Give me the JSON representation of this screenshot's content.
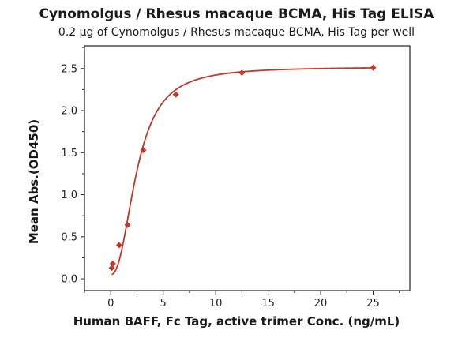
{
  "chart_data": {
    "type": "scatter",
    "title": "Cynomolgus / Rhesus macaque BCMA, His Tag ELISA",
    "subtitle": "0.2 μg of Cynomolgus / Rhesus macaque BCMA, His Tag per well",
    "xlabel": "Human BAFF, Fc Tag, active trimer Conc. (ng/mL)",
    "ylabel": "Mean Abs.(OD450)",
    "xlim": [
      -2.5,
      28.5
    ],
    "ylim": [
      -0.14,
      2.77
    ],
    "xticks": [
      0,
      5,
      10,
      15,
      20,
      25
    ],
    "xtick_labels": [
      "0",
      "5",
      "10",
      "15",
      "20",
      "25"
    ],
    "yticks": [
      0.0,
      0.5,
      1.0,
      1.5,
      2.0,
      2.5
    ],
    "ytick_labels": [
      "0.0",
      "0.5",
      "1.0",
      "1.5",
      "2.0",
      "2.5"
    ],
    "grid": false,
    "color": "#c0392b",
    "series": [
      {
        "marker": "diamond",
        "points": [
          {
            "x": 0.1,
            "y": 0.13
          },
          {
            "x": 0.2,
            "y": 0.18
          },
          {
            "x": 0.8,
            "y": 0.4
          },
          {
            "x": 1.6,
            "y": 0.64
          },
          {
            "x": 3.1,
            "y": 1.53
          },
          {
            "x": 6.2,
            "y": 2.19
          },
          {
            "x": 12.5,
            "y": 2.45
          },
          {
            "x": 25.0,
            "y": 2.51
          }
        ]
      }
    ],
    "fit": {
      "model": "4PL",
      "bottom": 0.05,
      "top": 2.52,
      "ec50": 2.5,
      "hill": 2.3
    }
  }
}
